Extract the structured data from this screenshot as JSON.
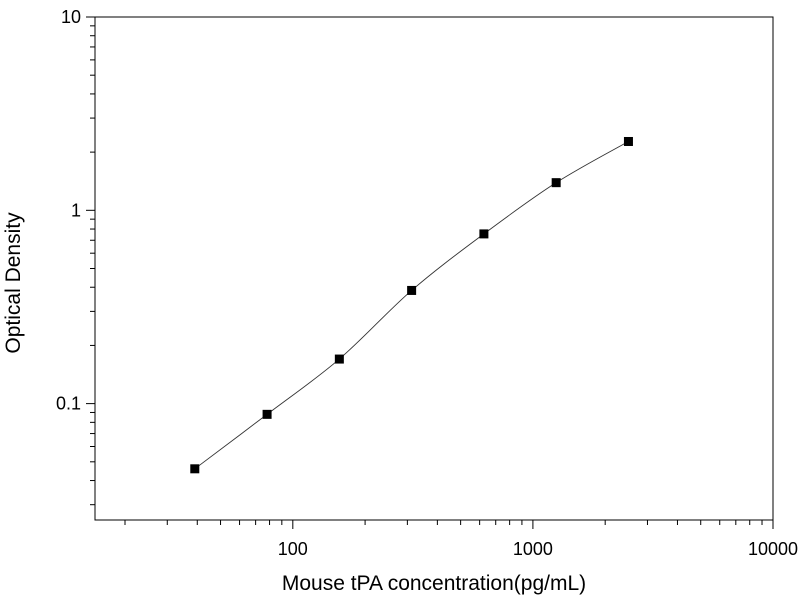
{
  "chart_data": {
    "type": "scatter",
    "title": "",
    "xlabel": "Mouse tPA concentration(pg/mL)",
    "ylabel": "Optical Density",
    "x_scale": "log",
    "y_scale": "log",
    "xlim": [
      15,
      10000
    ],
    "ylim": [
      0.025,
      10
    ],
    "grid": false,
    "legend": "none",
    "x_ticks": [
      {
        "value": 100,
        "label": "100"
      },
      {
        "value": 1000,
        "label": "1000"
      },
      {
        "value": 10000,
        "label": "10000"
      }
    ],
    "y_ticks": [
      {
        "value": 0.1,
        "label": "0.1"
      },
      {
        "value": 1,
        "label": "1"
      },
      {
        "value": 10,
        "label": "10"
      }
    ],
    "series": [
      {
        "marker": "square",
        "color": "#000000",
        "fit_line": true,
        "points": [
          {
            "x": 39.06,
            "y": 0.046
          },
          {
            "x": 78.13,
            "y": 0.088
          },
          {
            "x": 156.25,
            "y": 0.17
          },
          {
            "x": 312.5,
            "y": 0.385
          },
          {
            "x": 625,
            "y": 0.755
          },
          {
            "x": 1250,
            "y": 1.39
          },
          {
            "x": 2500,
            "y": 2.27
          }
        ]
      }
    ]
  }
}
